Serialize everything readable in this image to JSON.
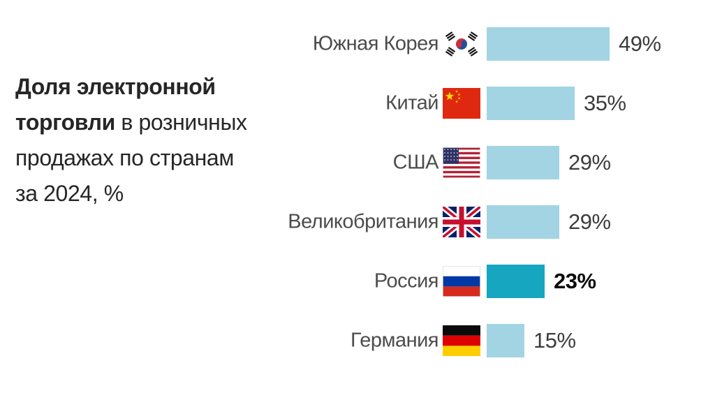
{
  "page": {
    "background": "#ffffff",
    "language": "ru"
  },
  "title": {
    "full_text": "Доля электронной торговли в розничных продажах по странам за 2024, %",
    "lines": [
      {
        "segments": [
          {
            "text": "Доля электронной",
            "bold": true
          }
        ]
      },
      {
        "segments": [
          {
            "text": "торговли",
            "bold": true
          },
          {
            "text": " в розничных",
            "bold": false
          }
        ]
      },
      {
        "segments": [
          {
            "text": "продажах по странам",
            "bold": false
          }
        ]
      },
      {
        "segments": [
          {
            "text": "за 2024, %",
            "bold": false
          }
        ]
      }
    ]
  },
  "chart_data": {
    "type": "bar",
    "orientation": "horizontal",
    "title": "Доля электронной торговли в розничных продажах по странам за 2024, %",
    "unit": "%",
    "xlim": [
      0,
      49
    ],
    "grid": false,
    "legend": "none",
    "categories": [
      "Южная Корея",
      "Китай",
      "США",
      "Великобритания",
      "Россия",
      "Германия"
    ],
    "values": [
      49,
      35,
      29,
      29,
      23,
      15
    ],
    "rows": [
      {
        "label": "Южная Корея",
        "flag": "kr",
        "value": 49,
        "display": "49%",
        "highlight": false
      },
      {
        "label": "Китай",
        "flag": "cn",
        "value": 35,
        "display": "35%",
        "highlight": false
      },
      {
        "label": "США",
        "flag": "us",
        "value": 29,
        "display": "29%",
        "highlight": false
      },
      {
        "label": "Великобритания",
        "flag": "gb",
        "value": 29,
        "display": "29%",
        "highlight": false
      },
      {
        "label": "Россия",
        "flag": "ru",
        "value": 23,
        "display": "23%",
        "highlight": true
      },
      {
        "label": "Германия",
        "flag": "de",
        "value": 15,
        "display": "15%",
        "highlight": false
      }
    ],
    "colors": {
      "bar": "#a2d4e3",
      "highlight_bar": "#16a6bf",
      "label_text": "#4c4c4c",
      "value_text": "#3d3d3d",
      "highlight_value_text": "#0a0a0a",
      "title_text": "#262626"
    }
  }
}
